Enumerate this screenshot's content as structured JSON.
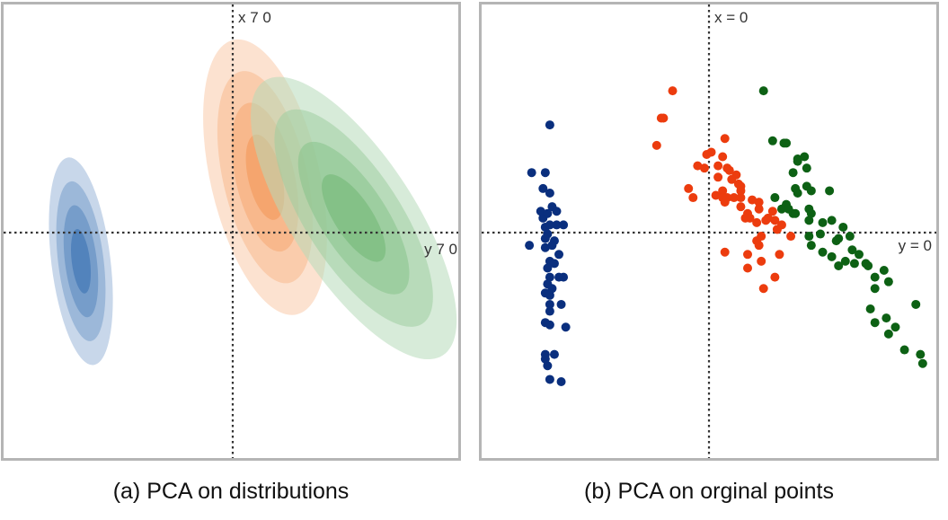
{
  "panels": [
    {
      "caption": "(a) PCA on distributions",
      "x_label": "x 7 0",
      "y_label": "y 7 0"
    },
    {
      "caption": "(b) PCA on orginal points",
      "x_label": "x = 0",
      "y_label": "y = 0"
    }
  ],
  "chart_data": [
    {
      "type": "contour",
      "xlim": [
        -1.0,
        1.0
      ],
      "ylim": [
        -1.0,
        1.0
      ],
      "grid": false,
      "zero_lines": true,
      "series": [
        {
          "color": "#1f5ea8",
          "center": [
            -0.66,
            -0.13
          ],
          "sd": [
            0.13,
            0.46
          ],
          "angle_deg": -7,
          "levels": 4
        },
        {
          "color": "#f28a43",
          "center": [
            0.15,
            0.24
          ],
          "sd": [
            0.24,
            0.62
          ],
          "angle_deg": -13,
          "levels": 4
        },
        {
          "color": "#5fae63",
          "center": [
            0.54,
            0.06
          ],
          "sd": [
            0.27,
            0.72
          ],
          "angle_deg": -33,
          "levels": 4
        }
      ]
    },
    {
      "type": "scatter",
      "xlim": [
        -1.0,
        1.0
      ],
      "ylim": [
        -1.0,
        1.0
      ],
      "grid": false,
      "zero_lines": true,
      "series": [
        {
          "color": "#0a2f7e",
          "x": [
            -0.7,
            -0.78,
            -0.72,
            -0.73,
            -0.7,
            -0.74,
            -0.69,
            -0.67,
            -0.73,
            -0.71,
            -0.67,
            -0.72,
            -0.7,
            -0.71,
            -0.64,
            -0.72,
            -0.68,
            -0.79,
            -0.69,
            -0.72,
            -0.66,
            -0.7,
            -0.68,
            -0.71,
            -0.64,
            -0.7,
            -0.66,
            -0.71,
            -0.72,
            -0.69,
            -0.7,
            -0.7,
            -0.65,
            -0.7,
            -0.72,
            -0.63,
            -0.7,
            -0.72,
            -0.68,
            -0.71,
            -0.72,
            -0.7,
            -0.65
          ],
          "y": [
            0.47,
            0.26,
            0.26,
            0.19,
            0.17,
            0.09,
            0.11,
            0.09,
            0.06,
            0.08,
            0.03,
            0.02,
            0.03,
            -0.01,
            0.03,
            -0.03,
            -0.04,
            -0.06,
            -0.06,
            -0.07,
            -0.1,
            -0.13,
            -0.14,
            -0.16,
            -0.2,
            -0.2,
            -0.2,
            -0.23,
            -0.27,
            -0.25,
            -0.28,
            -0.32,
            -0.32,
            -0.35,
            -0.4,
            -0.42,
            -0.41,
            -0.54,
            -0.54,
            -0.59,
            -0.56,
            -0.65,
            -0.66
          ]
        },
        {
          "color": "#ec3c0e",
          "x": [
            -0.16,
            -0.2,
            -0.21,
            -0.23,
            0.07,
            0.01,
            -0.01,
            0.06,
            0.04,
            0.08,
            -0.05,
            -0.02,
            0.09,
            0.12,
            0.04,
            0.1,
            0.13,
            0.14,
            0.14,
            -0.09,
            -0.07,
            0.06,
            0.03,
            0.06,
            0.08,
            0.07,
            0.11,
            0.14,
            0.19,
            0.22,
            0.14,
            0.22,
            0.17,
            0.28,
            0.18,
            0.16,
            0.26,
            0.29,
            0.21,
            0.25,
            0.32,
            0.3,
            0.36,
            0.23,
            0.21,
            0.22,
            0.07,
            0.17,
            0.31,
            0.23,
            0.17,
            0.29,
            0.24
          ],
          "y": [
            0.62,
            0.5,
            0.5,
            0.38,
            0.41,
            0.35,
            0.34,
            0.33,
            0.29,
            0.28,
            0.29,
            0.28,
            0.27,
            0.25,
            0.24,
            0.23,
            0.21,
            0.2,
            0.18,
            0.19,
            0.15,
            0.18,
            0.16,
            0.15,
            0.15,
            0.13,
            0.15,
            0.15,
            0.14,
            0.13,
            0.11,
            0.1,
            0.08,
            0.09,
            0.06,
            0.06,
            0.06,
            0.05,
            0.04,
            0.05,
            0.03,
            0.01,
            -0.02,
            -0.02,
            -0.04,
            -0.06,
            -0.09,
            -0.1,
            -0.1,
            -0.13,
            -0.16,
            -0.2,
            -0.25
          ]
        },
        {
          "color": "#0d6114",
          "x": [
            0.24,
            0.28,
            0.33,
            0.34,
            0.39,
            0.39,
            0.42,
            0.43,
            0.37,
            0.43,
            0.38,
            0.53,
            0.45,
            0.39,
            0.29,
            0.34,
            0.32,
            0.35,
            0.37,
            0.44,
            0.45,
            0.38,
            0.44,
            0.5,
            0.54,
            0.59,
            0.49,
            0.44,
            0.56,
            0.57,
            0.62,
            0.45,
            0.5,
            0.63,
            0.66,
            0.54,
            0.6,
            0.64,
            0.57,
            0.69,
            0.7,
            0.77,
            0.79,
            0.73,
            0.73,
            0.91,
            0.71,
            0.78,
            0.73,
            0.82,
            0.79,
            0.86,
            0.93,
            0.94
          ],
          "y": [
            0.62,
            0.4,
            0.39,
            0.39,
            0.32,
            0.31,
            0.33,
            0.28,
            0.26,
            0.2,
            0.19,
            0.18,
            0.18,
            0.17,
            0.15,
            0.12,
            0.1,
            0.1,
            0.08,
            0.1,
            0.08,
            0.08,
            0.05,
            0.04,
            0.05,
            0.02,
            -0.01,
            -0.02,
            -0.04,
            -0.03,
            -0.02,
            -0.06,
            -0.09,
            -0.08,
            -0.1,
            -0.11,
            -0.13,
            -0.14,
            -0.15,
            -0.14,
            -0.15,
            -0.17,
            -0.22,
            -0.2,
            -0.25,
            -0.32,
            -0.34,
            -0.38,
            -0.4,
            -0.42,
            -0.45,
            -0.52,
            -0.54,
            -0.58
          ]
        }
      ]
    }
  ]
}
